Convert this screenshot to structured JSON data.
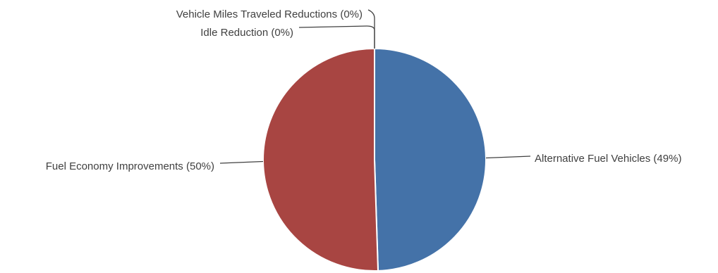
{
  "chart_data": {
    "type": "pie",
    "title": "",
    "slices": [
      {
        "name": "Alternative Fuel Vehicles",
        "value": 49,
        "label": "Alternative Fuel Vehicles (49%)",
        "color": "#4472a8"
      },
      {
        "name": "Fuel Economy Improvements",
        "value": 50,
        "label": "Fuel Economy Improvements (50%)",
        "color": "#a84542"
      },
      {
        "name": "Idle Reduction",
        "value": 0,
        "label": "Idle Reduction (0%)",
        "color": "#89a54e"
      },
      {
        "name": "Vehicle Miles Traveled Reductions",
        "value": 0,
        "label": "Vehicle Miles Traveled Reductions (0%)",
        "color": "#71588f"
      }
    ],
    "legend": "none",
    "data_labels": "outside with leader lines"
  }
}
